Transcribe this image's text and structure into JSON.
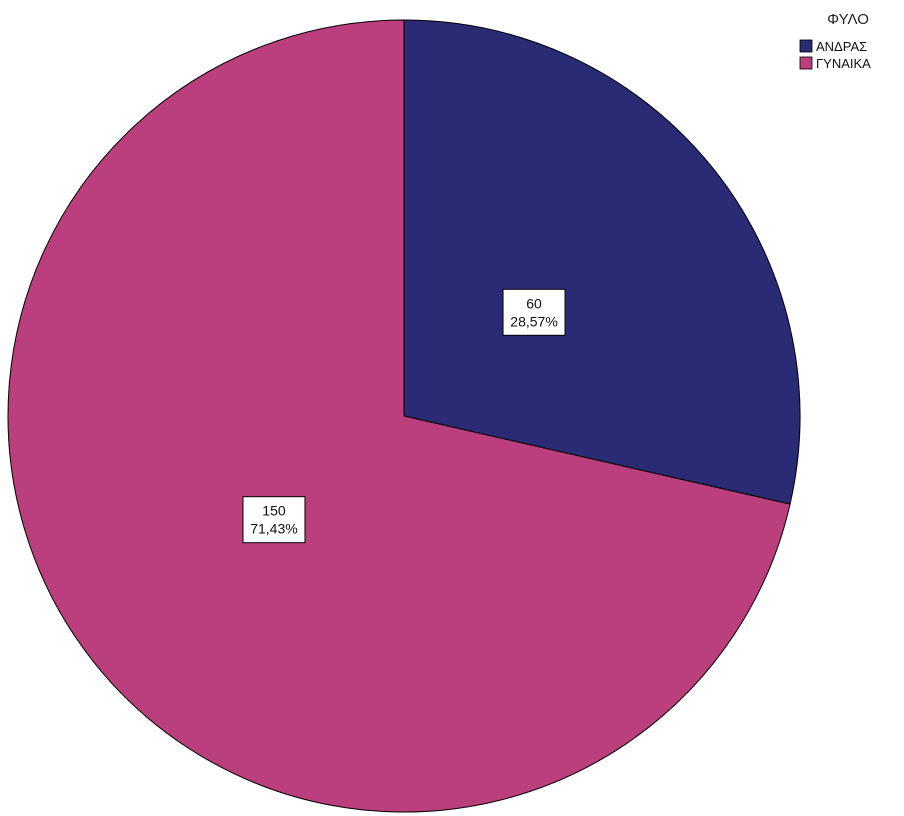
{
  "chart_data": {
    "type": "pie",
    "legend_title": "ΦΥΛΟ",
    "legend_position": "top-right",
    "categories": [
      "ΑΝΔΡΑΣ",
      "ΓΥΝΑΙΚΑ"
    ],
    "values": [
      60,
      150
    ],
    "percent_labels": [
      "28,57%",
      "71,43%"
    ],
    "colors": [
      "#2b2a74",
      "#bc3f7d"
    ],
    "start": "12 o'clock",
    "direction": "clockwise"
  }
}
